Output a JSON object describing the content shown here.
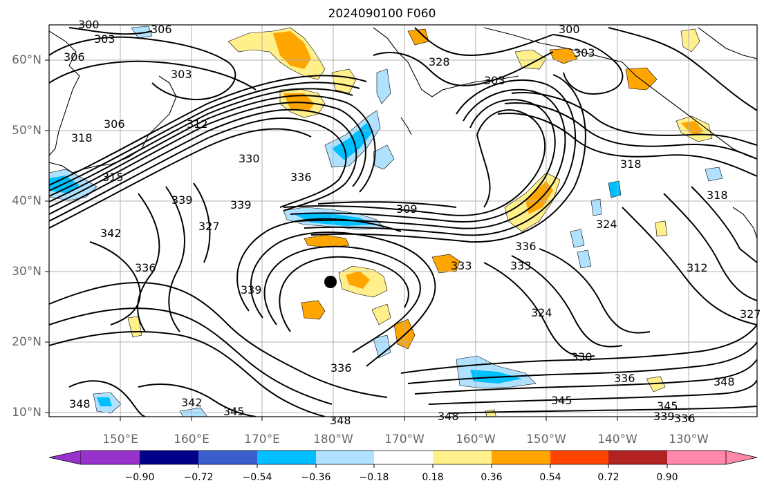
{
  "title": "2024090100 F060",
  "lat_ticks": [
    "10°N",
    "20°N",
    "30°N",
    "40°N",
    "50°N",
    "60°N"
  ],
  "lon_ticks": [
    "150°E",
    "160°E",
    "170°E",
    "180°W",
    "170°W",
    "160°W",
    "150°W",
    "140°W",
    "130°W"
  ],
  "colorbar": {
    "labels": [
      "−0.90",
      "−0.72",
      "−0.54",
      "−0.36",
      "−0.18",
      "0.18",
      "0.36",
      "0.54",
      "0.72",
      "0.90"
    ],
    "colors": [
      "#9932cc",
      "#00008b",
      "#3a5fcd",
      "#00bfff",
      "#b0e2ff",
      "#ffffff",
      "#fff08b",
      "#ffa500",
      "#ff4500",
      "#b22222",
      "#ff88aa"
    ]
  },
  "contour_labels": [
    {
      "text": "300"
    },
    {
      "text": "303"
    },
    {
      "text": "306"
    },
    {
      "text": "306"
    },
    {
      "text": "303"
    },
    {
      "text": "306"
    },
    {
      "text": "312"
    },
    {
      "text": "315"
    },
    {
      "text": "318"
    },
    {
      "text": "303"
    },
    {
      "text": "303"
    },
    {
      "text": "300"
    },
    {
      "text": "330"
    },
    {
      "text": "336"
    },
    {
      "text": "339"
    },
    {
      "text": "327"
    },
    {
      "text": "339"
    },
    {
      "text": "342"
    },
    {
      "text": "336"
    },
    {
      "text": "339"
    },
    {
      "text": "309"
    },
    {
      "text": "336"
    },
    {
      "text": "333"
    },
    {
      "text": "333"
    },
    {
      "text": "324"
    },
    {
      "text": "312"
    },
    {
      "text": "318"
    },
    {
      "text": "318"
    },
    {
      "text": "324"
    },
    {
      "text": "330"
    },
    {
      "text": "336"
    },
    {
      "text": "336"
    },
    {
      "text": "342"
    },
    {
      "text": "345"
    },
    {
      "text": "348"
    },
    {
      "text": "348"
    },
    {
      "text": "348"
    },
    {
      "text": "345"
    },
    {
      "text": "348"
    },
    {
      "text": "345"
    },
    {
      "text": "339"
    },
    {
      "text": "336"
    },
    {
      "text": "328"
    },
    {
      "text": "327"
    }
  ]
}
